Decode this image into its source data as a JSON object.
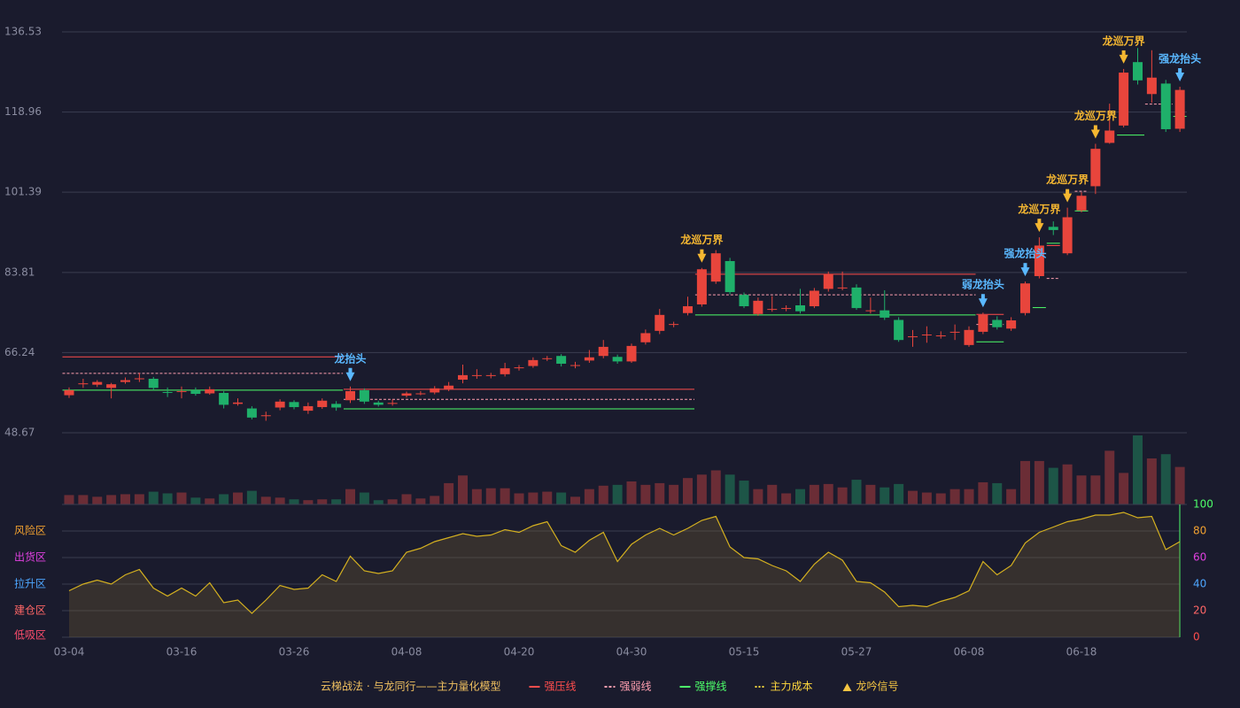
{
  "chart_data": {
    "type": "candlestick",
    "categories": [
      "03-04",
      null,
      null,
      null,
      null,
      null,
      null,
      null,
      "03-16",
      null,
      null,
      null,
      null,
      null,
      null,
      null,
      "03-26",
      null,
      null,
      null,
      null,
      null,
      null,
      null,
      "04-08",
      null,
      null,
      null,
      null,
      null,
      null,
      null,
      "04-20",
      null,
      null,
      null,
      null,
      null,
      null,
      null,
      "04-30",
      null,
      null,
      null,
      null,
      null,
      null,
      null,
      "05-15",
      null,
      null,
      null,
      null,
      null,
      null,
      null,
      "05-27",
      null,
      null,
      null,
      null,
      null,
      null,
      null,
      "06-08",
      null,
      null,
      null,
      null,
      null,
      null,
      null,
      "06-18",
      null,
      null,
      null,
      null,
      null,
      null,
      null
    ],
    "open": [
      56.9,
      59.3,
      59.2,
      58.5,
      59.8,
      60.4,
      60.5,
      57.6,
      57.7,
      58.0,
      57.3,
      57.4,
      55.0,
      54.0,
      52.4,
      54.2,
      55.4,
      53.5,
      54.3,
      55.0,
      55.8,
      58.0,
      55.3,
      55.1,
      56.8,
      57.2,
      57.5,
      58.3,
      60.3,
      61.2,
      61.2,
      61.5,
      62.9,
      63.3,
      64.9,
      65.5,
      63.4,
      64.5,
      65.5,
      65.3,
      64.3,
      68.5,
      71.0,
      72.4,
      74.9,
      76.8,
      81.8,
      86.3,
      78.9,
      74.7,
      75.7,
      75.9,
      76.6,
      76.4,
      80.2,
      80.4,
      80.5,
      75.4,
      75.5,
      73.4,
      69.7,
      70.1,
      69.9,
      70.7,
      67.9,
      70.8,
      73.4,
      71.5,
      74.9,
      83.0,
      93.8,
      88.0,
      97.4,
      102.7,
      112.2,
      116.0,
      129.9,
      122.9,
      125.2,
      115.3
    ],
    "high": [
      58.6,
      60.5,
      60.2,
      59.6,
      60.8,
      61.8,
      60.9,
      58.6,
      58.8,
      58.6,
      58.8,
      57.8,
      56.2,
      54.5,
      53.3,
      56.0,
      55.8,
      55.3,
      56.2,
      55.6,
      58.8,
      58.4,
      55.7,
      56.0,
      57.7,
      57.8,
      58.9,
      59.8,
      63.6,
      62.6,
      61.8,
      64.0,
      63.5,
      65.2,
      65.5,
      65.9,
      64.2,
      66.8,
      69.0,
      65.8,
      68.2,
      71.3,
      75.8,
      73.0,
      78.5,
      84.8,
      88.7,
      87.0,
      79.4,
      78.3,
      78.6,
      76.6,
      80.2,
      80.4,
      84.0,
      84.0,
      81.2,
      78.3,
      79.9,
      74.0,
      71.2,
      72.0,
      70.9,
      72.4,
      72.0,
      75.0,
      74.2,
      74.0,
      81.8,
      91.5,
      95.0,
      98.0,
      101.4,
      112.0,
      120.8,
      128.4,
      133.0,
      132.5,
      126.0,
      124.5
    ],
    "low": [
      56.3,
      58.5,
      58.7,
      56.2,
      59.4,
      59.8,
      58.0,
      56.5,
      56.2,
      56.8,
      57.0,
      54.0,
      54.6,
      51.6,
      51.3,
      53.6,
      53.8,
      52.8,
      53.9,
      53.5,
      55.2,
      55.0,
      54.4,
      54.6,
      56.4,
      56.9,
      57.1,
      57.8,
      59.5,
      60.5,
      60.6,
      61.0,
      62.3,
      62.9,
      64.4,
      63.2,
      62.8,
      64.0,
      65.0,
      63.8,
      64.0,
      68.0,
      70.3,
      71.8,
      74.4,
      76.3,
      81.3,
      79.0,
      76.0,
      74.3,
      75.2,
      75.3,
      74.8,
      76.0,
      79.6,
      79.9,
      75.6,
      74.8,
      73.4,
      68.6,
      67.5,
      68.4,
      69.3,
      69.0,
      67.5,
      70.3,
      71.3,
      71.0,
      74.4,
      82.5,
      92.0,
      87.6,
      97.0,
      101.0,
      112.0,
      115.6,
      125.0,
      121.0,
      114.6,
      114.6
    ],
    "close": [
      58.0,
      59.5,
      59.8,
      59.3,
      60.2,
      60.6,
      58.5,
      57.5,
      57.8,
      57.2,
      58.2,
      54.8,
      55.3,
      52.0,
      52.5,
      55.5,
      54.3,
      54.5,
      55.7,
      54.2,
      57.8,
      55.5,
      54.8,
      55.2,
      57.3,
      57.3,
      58.4,
      59.0,
      61.3,
      61.3,
      61.3,
      62.8,
      63.0,
      64.6,
      65.0,
      63.8,
      63.5,
      65.2,
      67.5,
      64.3,
      67.7,
      70.5,
      74.5,
      72.5,
      76.4,
      84.5,
      88.0,
      79.5,
      76.4,
      77.6,
      75.8,
      76.0,
      75.3,
      79.8,
      83.5,
      80.5,
      76.0,
      75.5,
      73.9,
      69.0,
      69.8,
      70.2,
      70.0,
      70.8,
      71.2,
      74.5,
      71.8,
      73.3,
      81.4,
      89.7,
      93.1,
      95.9,
      100.6,
      110.9,
      114.9,
      127.6,
      125.9,
      126.5,
      115.2,
      123.8
    ],
    "up_color": "#e8453c",
    "down_color": "#1fb06a",
    "ylim": [
      48.67,
      136.53
    ],
    "yticks": [
      48.67,
      66.24,
      83.81,
      101.39,
      118.96,
      136.53
    ],
    "grid": true,
    "volume": {
      "values": [
        11,
        11,
        9,
        11,
        12,
        12,
        15,
        13,
        14,
        8,
        7,
        12,
        14,
        16,
        9,
        8,
        6,
        5,
        6,
        6,
        18,
        14,
        5,
        6,
        12,
        7,
        10,
        25,
        34,
        18,
        19,
        19,
        13,
        14,
        15,
        14,
        9,
        18,
        22,
        23,
        27,
        23,
        25,
        23,
        31,
        35,
        40,
        35,
        28,
        18,
        23,
        13,
        18,
        23,
        24,
        20,
        29,
        23,
        20,
        24,
        16,
        14,
        13,
        18,
        18,
        26,
        25,
        18,
        51,
        51,
        43,
        47,
        34,
        34,
        63,
        37,
        81,
        54,
        59,
        44
      ],
      "up_color": "#6b2d36",
      "down_color": "#1d5547"
    },
    "levels": [
      {
        "start": 0,
        "end": 19,
        "resistance": 65.3,
        "pivot": 61.7,
        "support": 58.0
      },
      {
        "start": 20,
        "end": 44,
        "resistance": 58.2,
        "pivot": 56.0,
        "support": 53.9
      },
      {
        "start": 45,
        "end": 64,
        "resistance": 83.4,
        "pivot": 78.9,
        "support": 74.5
      },
      {
        "start": 65,
        "end": 66,
        "resistance": 74.6,
        "pivot": 72.4,
        "support": 68.6
      },
      {
        "start": 69,
        "end": 69,
        "support": 76.1
      },
      {
        "start": 70,
        "end": 70,
        "resistance": 89.7,
        "pivot": 82.5,
        "support": 90.2
      },
      {
        "start": 72,
        "end": 72,
        "pivot": 101.6,
        "support": 97.3
      },
      {
        "start": 75,
        "end": 76,
        "support": 113.9
      },
      {
        "start": 77,
        "end": 78,
        "pivot": 120.7
      },
      {
        "start": 79,
        "end": 79,
        "support": 118.0
      }
    ],
    "signals": [
      {
        "index": 20,
        "label": "龙抬头",
        "color": "#5ab8ff"
      },
      {
        "index": 45,
        "label": "龙巡万界",
        "color": "#f5b731"
      },
      {
        "index": 65,
        "label": "弱龙抬头",
        "color": "#5ab8ff"
      },
      {
        "index": 68,
        "label": "强龙抬头",
        "color": "#5ab8ff"
      },
      {
        "index": 69,
        "label": "龙巡万界",
        "color": "#f5b731"
      },
      {
        "index": 71,
        "label": "龙巡万界",
        "color": "#f5b731"
      },
      {
        "index": 73,
        "label": "龙巡万界",
        "color": "#f5b731"
      },
      {
        "index": 75,
        "label": "龙巡万界",
        "color": "#f5b731"
      },
      {
        "index": 79,
        "label": "强龙抬头",
        "color": "#5ab8ff"
      }
    ],
    "oscillator": {
      "values": [
        35,
        40,
        43,
        40,
        47,
        51,
        37,
        31,
        37,
        31,
        41,
        26,
        28,
        18,
        28,
        39,
        36,
        37,
        47,
        42,
        61,
        50,
        48,
        50,
        64,
        67,
        72,
        75,
        78,
        76,
        77,
        81,
        79,
        84,
        87,
        69,
        64,
        73,
        79,
        57,
        70,
        77,
        82,
        77,
        82,
        88,
        91,
        68,
        60,
        59,
        54,
        50,
        42,
        55,
        64,
        58,
        42,
        41,
        34,
        23,
        24,
        23,
        27,
        30,
        35,
        57,
        47,
        54,
        71,
        79,
        83,
        87,
        89,
        92,
        92,
        94,
        90,
        91,
        66,
        72
      ],
      "color": "#d4b020",
      "ylim": [
        0,
        100
      ],
      "yticks": [
        0,
        20,
        40,
        60,
        80,
        100
      ],
      "ytick_colors": [
        "#ff4d4d",
        "#ff6666",
        "#4da6ff",
        "#e040e0",
        "#f0a030",
        "#4dff6a"
      ],
      "zones": [
        {
          "label": "风险区",
          "value": 80,
          "color": "#f0a030"
        },
        {
          "label": "出货区",
          "value": 60,
          "color": "#e040e0"
        },
        {
          "label": "拉升区",
          "value": 40,
          "color": "#4da6ff"
        },
        {
          "label": "建仓区",
          "value": 20,
          "color": "#ff6666"
        },
        {
          "label": "低吸区",
          "value": 0,
          "color": "#ff4d6d"
        }
      ]
    },
    "legend": {
      "title": "云梯战法 · 与龙同行——主力量化模型",
      "title_color": "#f0c060",
      "items": [
        {
          "name": "强压线",
          "color": "#ff4d4d",
          "style": "solid"
        },
        {
          "name": "强弱线",
          "color": "#ff9fb0",
          "style": "dashed"
        },
        {
          "name": "强撑线",
          "color": "#4dff6a",
          "style": "solid"
        },
        {
          "name": "主力成本",
          "color": "#ffd83d",
          "style": "dotted"
        },
        {
          "name": "龙吟信号",
          "color": "#f5c542",
          "style": "triangle"
        }
      ]
    }
  }
}
